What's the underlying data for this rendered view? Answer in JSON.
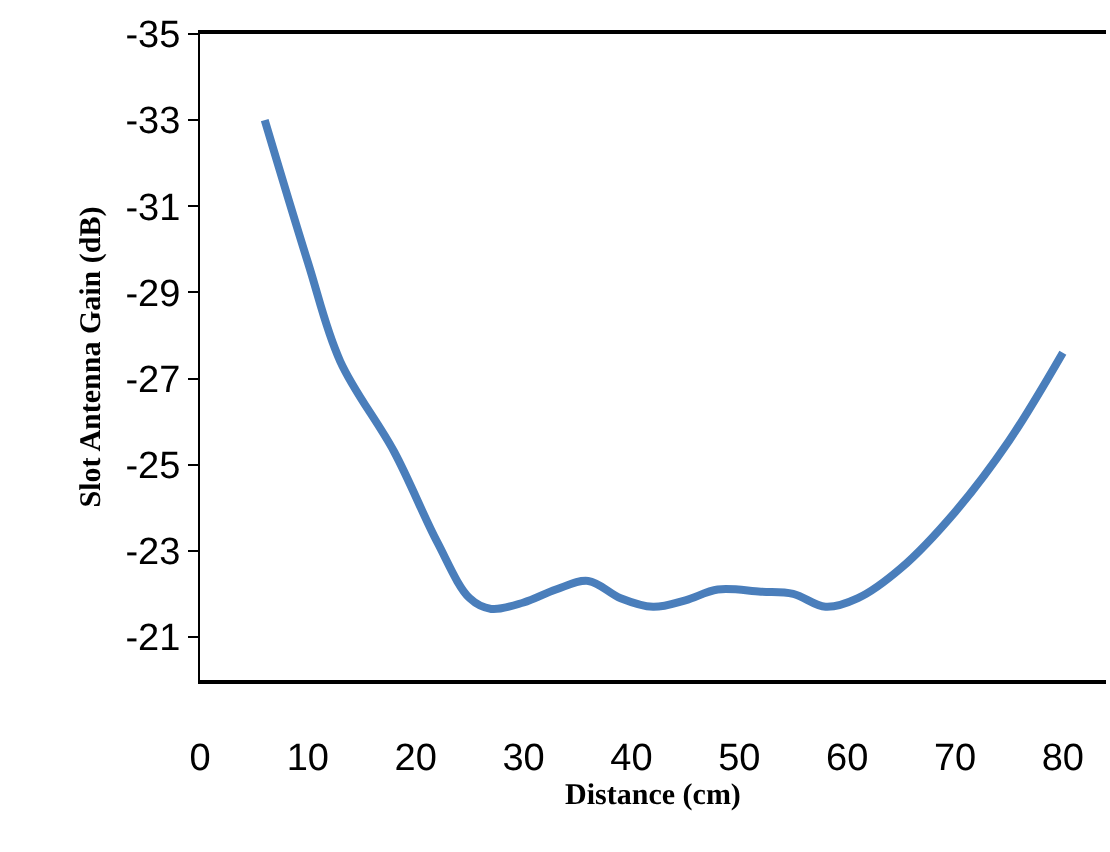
{
  "chart_data": {
    "type": "line",
    "xlabel": "Distance (cm)",
    "ylabel": "Slot Antenna Gain (dB)",
    "x": [
      6,
      10,
      13,
      18,
      22,
      25,
      27,
      30,
      33,
      36,
      39,
      42,
      45,
      48,
      52,
      55,
      58,
      61,
      65,
      70,
      75,
      80
    ],
    "series": [
      {
        "color": "#4a7ebb",
        "values": [
          -33,
          -29.7,
          -27.4,
          -25.3,
          -23.2,
          -21.9,
          -21.65,
          -21.8,
          -22.1,
          -22.3,
          -21.9,
          -21.7,
          -21.85,
          -22.1,
          -22.05,
          -22,
          -21.7,
          -21.9,
          -22.6,
          -23.9,
          -25.55,
          -27.6
        ]
      }
    ],
    "xlim": [
      0,
      84
    ],
    "xticks": [
      0,
      10,
      20,
      30,
      40,
      50,
      60,
      70,
      80
    ],
    "ylim": [
      -20,
      -35
    ],
    "yticks": [
      -35,
      -33,
      -31,
      -29,
      -27,
      -25,
      -23,
      -21
    ],
    "legend": false,
    "marker": "none",
    "line_style": "solid"
  }
}
